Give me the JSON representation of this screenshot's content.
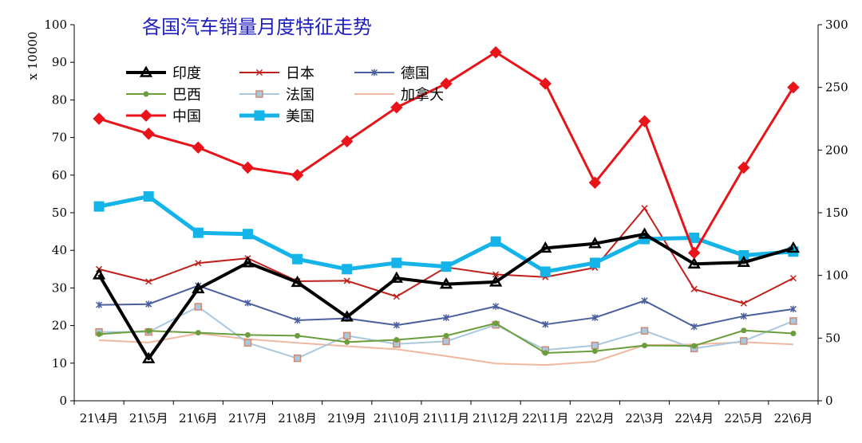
{
  "chart_data": {
    "type": "line",
    "title": "各国汽车销量月度特征走势",
    "ylabel": "x 10000",
    "categories": [
      "21\\4月",
      "21\\5月",
      "21\\6月",
      "21\\7月",
      "21\\8月",
      "21\\9月",
      "21\\10月",
      "21\\11月",
      "21\\12月",
      "22\\11月",
      "22\\2月",
      "22\\3月",
      "22\\4月",
      "22\\5月",
      "22\\6月"
    ],
    "left_axis": {
      "min": 0,
      "max": 100,
      "step": 10
    },
    "right_axis": {
      "min": 0,
      "max": 300,
      "step": 50
    },
    "grid": false,
    "legend_position": "top-left",
    "series": [
      {
        "name": "印度",
        "axis": "left",
        "color": "#000000",
        "marker": "triangle",
        "width": 4,
        "values": [
          33.5,
          11.2,
          29.8,
          36.7,
          31.5,
          22.3,
          32.6,
          31.0,
          31.6,
          40.6,
          41.8,
          44.3,
          36.4,
          36.8,
          40.6
        ]
      },
      {
        "name": "日本",
        "axis": "left",
        "color": "#c0201c",
        "marker": "x",
        "width": 2,
        "values": [
          35.0,
          31.7,
          36.6,
          37.9,
          31.8,
          31.9,
          27.7,
          35.5,
          33.6,
          32.9,
          35.4,
          51.2,
          29.7,
          25.9,
          32.6
        ]
      },
      {
        "name": "德国",
        "axis": "left",
        "color": "#4a5f9e",
        "marker": "star",
        "width": 2,
        "values": [
          25.5,
          25.7,
          30.6,
          26.0,
          21.4,
          21.9,
          20.1,
          22.1,
          25.1,
          20.3,
          22.1,
          26.6,
          19.7,
          22.5,
          24.4
        ]
      },
      {
        "name": "巴西",
        "axis": "left",
        "color": "#6a9e3c",
        "marker": "circle",
        "width": 2,
        "values": [
          17.7,
          18.6,
          18.1,
          17.5,
          17.3,
          15.6,
          16.2,
          17.3,
          20.6,
          12.7,
          13.2,
          14.7,
          14.6,
          18.7,
          17.9
        ]
      },
      {
        "name": "法国",
        "axis": "left",
        "color": "#a8c8e0",
        "marker": "square",
        "width": 2,
        "values": [
          18.3,
          18.3,
          25.0,
          15.4,
          11.3,
          17.3,
          15.1,
          15.8,
          20.2,
          13.5,
          14.7,
          18.6,
          13.9,
          15.9,
          21.2
        ]
      },
      {
        "name": "加拿大",
        "axis": "left",
        "color": "#f0b8a0",
        "marker": "none",
        "width": 2,
        "values": [
          16.1,
          15.5,
          17.9,
          16.4,
          15.4,
          14.5,
          13.7,
          11.9,
          9.9,
          9.5,
          10.4,
          14.8,
          15.0,
          15.6,
          15.0
        ]
      },
      {
        "name": "中国",
        "axis": "right",
        "color": "#e8141a",
        "marker": "diamond",
        "width": 3,
        "values": [
          225,
          213,
          202,
          186,
          180,
          207,
          234,
          253,
          278,
          253,
          174,
          223,
          118,
          186,
          250
        ]
      },
      {
        "name": "美国",
        "axis": "right",
        "color": "#14b4e8",
        "marker": "square",
        "width": 5,
        "values": [
          155,
          163,
          134,
          133,
          113,
          105,
          110,
          107,
          127,
          103,
          110,
          129,
          130,
          116,
          119
        ]
      }
    ]
  }
}
